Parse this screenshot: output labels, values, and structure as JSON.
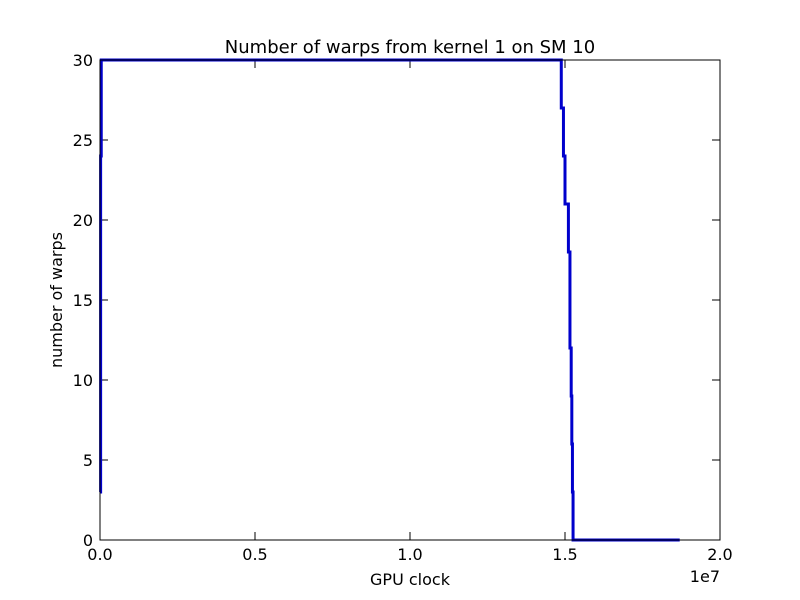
{
  "chart_data": {
    "type": "line",
    "title": "Number of warps from kernel 1 on SM 10",
    "xlabel": "GPU clock",
    "ylabel": "number of warps",
    "x_offset_label": "1e7",
    "xlim": [
      0,
      20000000
    ],
    "ylim": [
      0,
      30
    ],
    "x_ticks": [
      0,
      5000000,
      10000000,
      15000000,
      20000000
    ],
    "x_tick_labels": [
      "0.0",
      "0.5",
      "1.0",
      "1.5",
      "2.0"
    ],
    "y_ticks": [
      0,
      5,
      10,
      15,
      20,
      25,
      30
    ],
    "y_tick_labels": [
      "0",
      "5",
      "10",
      "15",
      "20",
      "25",
      "30"
    ],
    "grid": false,
    "line_color": "#0000cc",
    "series": [
      {
        "x": [
          0,
          20000,
          20000,
          40000,
          40000,
          14880000,
          14880000,
          14950000,
          14950000,
          15000000,
          15000000,
          15050000,
          15050000,
          15110000,
          15110000,
          15160000,
          15160000,
          15200000,
          15200000,
          15220000,
          15220000,
          15240000,
          15240000,
          15260000,
          15260000,
          18700000
        ],
        "y": [
          3,
          3,
          24,
          24,
          30,
          30,
          27,
          27,
          24,
          24,
          21,
          21,
          21,
          21,
          18,
          18,
          12,
          12,
          9,
          9,
          6,
          6,
          3,
          3,
          0,
          0
        ]
      }
    ]
  }
}
